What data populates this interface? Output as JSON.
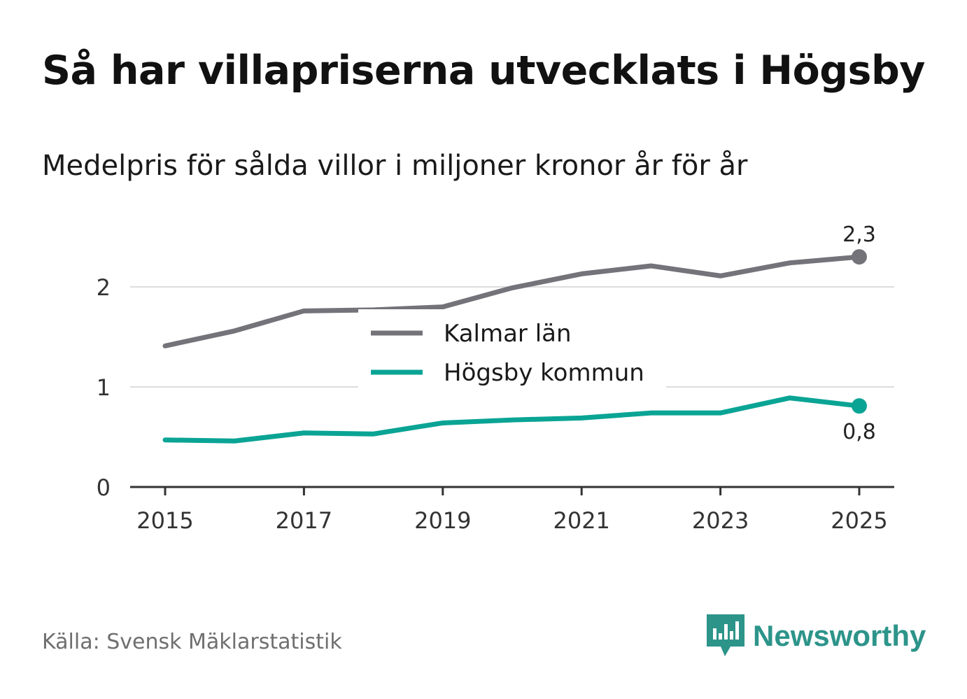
{
  "title": "Så har villapriserna utvecklats i Högsby",
  "subtitle": "Medelpris för sålda villor i miljoner kronor år för år",
  "source": "Källa: Svensk Mäklarstatistik",
  "brand": {
    "name": "Newsworthy",
    "icon": "newsworthy-logo-icon"
  },
  "colors": {
    "kalmar": "#74737a",
    "hogsby": "#0aa495",
    "grid": "#dddddd",
    "axis": "#333333",
    "brand": "#2d948a"
  },
  "chart_data": {
    "type": "line",
    "x": [
      2015,
      2016,
      2017,
      2018,
      2019,
      2020,
      2021,
      2022,
      2023,
      2024,
      2025
    ],
    "xticks": [
      "2015",
      "2017",
      "2019",
      "2021",
      "2023",
      "2025"
    ],
    "yticks": [
      "0",
      "1",
      "2"
    ],
    "ylim": [
      0,
      2.5
    ],
    "series": [
      {
        "name": "Kalmar län",
        "values": [
          1.41,
          1.56,
          1.76,
          1.77,
          1.8,
          1.99,
          2.13,
          2.21,
          2.11,
          2.24,
          2.3
        ],
        "end_label": "2,3"
      },
      {
        "name": "Högsby kommun",
        "values": [
          0.47,
          0.46,
          0.54,
          0.53,
          0.64,
          0.67,
          0.69,
          0.74,
          0.74,
          0.89,
          0.81
        ],
        "end_label": "0,8"
      }
    ],
    "legend_position": "center"
  }
}
